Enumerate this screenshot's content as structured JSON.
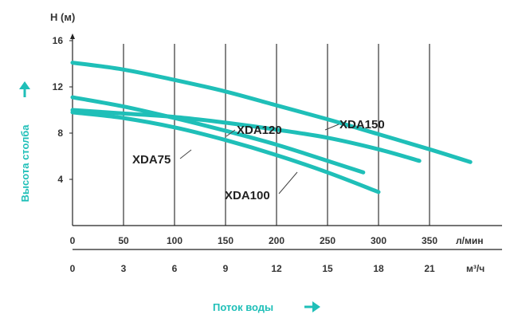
{
  "colors": {
    "curve": "#1fbfb8",
    "axis_title": "#1fbfb8",
    "grid": "#222222",
    "text": "#333333"
  },
  "chart_data": {
    "type": "line",
    "ylabel_top": "H (м)",
    "ylabel_side": "Высота столба",
    "xlabel": "Поток воды",
    "x_unit_primary": "л/мин",
    "x_unit_secondary": "м³/ч",
    "xlim": [
      0,
      400
    ],
    "ylim": [
      0,
      16
    ],
    "x_ticks": [
      0,
      50,
      100,
      150,
      200,
      250,
      300,
      350
    ],
    "x_tick_labels": [
      "0",
      "50",
      "100",
      "150",
      "200",
      "250",
      "300",
      "350"
    ],
    "x2_ticks": [
      0,
      3,
      6,
      9,
      12,
      15,
      18,
      21
    ],
    "x2_tick_labels": [
      "0",
      "3",
      "6",
      "9",
      "12",
      "15",
      "18",
      "21"
    ],
    "y_ticks": [
      4,
      8,
      12,
      16
    ],
    "y_tick_labels": [
      "4",
      "8",
      "12",
      "16"
    ],
    "grid": "vertical",
    "series": [
      {
        "name": "XDA150",
        "x": [
          0,
          50,
          100,
          150,
          200,
          250,
          300,
          350,
          390
        ],
        "y": [
          14.1,
          13.5,
          12.6,
          11.6,
          10.4,
          9.2,
          7.9,
          6.6,
          5.5
        ]
      },
      {
        "name": "XDA120",
        "x": [
          0,
          50,
          100,
          150,
          200,
          250,
          300,
          340
        ],
        "y": [
          10.0,
          9.7,
          9.4,
          8.9,
          8.3,
          7.6,
          6.6,
          5.6
        ]
      },
      {
        "name": "XDA75",
        "x": [
          0,
          50,
          100,
          150,
          200,
          250,
          285
        ],
        "y": [
          11.1,
          10.3,
          9.3,
          8.2,
          7.0,
          5.6,
          4.6
        ]
      },
      {
        "name": "XDA100",
        "x": [
          0,
          50,
          100,
          150,
          200,
          250,
          300
        ],
        "y": [
          9.8,
          9.3,
          8.5,
          7.4,
          6.1,
          4.6,
          2.9
        ]
      }
    ],
    "labels": [
      "XDA150",
      "XDA120",
      "XDA75",
      "XDA100"
    ]
  }
}
